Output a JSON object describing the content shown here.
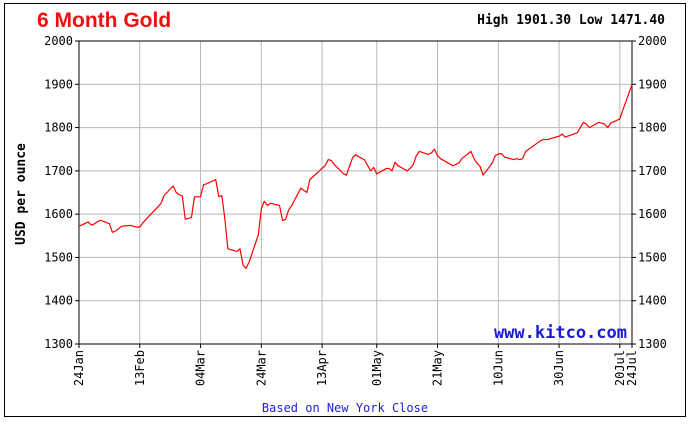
{
  "chart_data": {
    "type": "line",
    "title": "6 Month Gold",
    "high_low": "High 1901.30 Low 1471.40",
    "ylabel": "USD per ounce",
    "ylim": [
      1300,
      2000
    ],
    "yticks": [
      1300,
      1400,
      1500,
      1600,
      1700,
      1800,
      1900,
      2000
    ],
    "xlabels": [
      {
        "label": "24Jan",
        "day": 0
      },
      {
        "label": "13Feb",
        "day": 20
      },
      {
        "label": "04Mar",
        "day": 40
      },
      {
        "label": "24Mar",
        "day": 60
      },
      {
        "label": "13Apr",
        "day": 80
      },
      {
        "label": "01May",
        "day": 98
      },
      {
        "label": "21May",
        "day": 118
      },
      {
        "label": "10Jun",
        "day": 138
      },
      {
        "label": "30Jun",
        "day": 158
      },
      {
        "label": "20Jul",
        "day": 178
      },
      {
        "label": "24Jul",
        "day": 182
      }
    ],
    "watermark": "www.kitco.com",
    "note": "Based on New York Close",
    "grid": true,
    "line_color": "#ff0000",
    "series": [
      {
        "x": [
          "24Jan",
          "27Jan",
          "28Jan",
          "29Jan",
          "30Jan",
          "31Jan",
          "03Feb",
          "04Feb",
          "05Feb",
          "06Feb",
          "07Feb",
          "10Feb",
          "11Feb",
          "12Feb",
          "13Feb",
          "14Feb",
          "18Feb",
          "19Feb",
          "20Feb",
          "21Feb",
          "24Feb",
          "25Feb",
          "26Feb",
          "27Feb",
          "28Feb",
          "02Mar",
          "03Mar",
          "04Mar",
          "05Mar",
          "06Mar",
          "09Mar",
          "10Mar",
          "11Mar",
          "12Mar",
          "13Mar",
          "16Mar",
          "17Mar",
          "18Mar",
          "19Mar",
          "20Mar",
          "23Mar",
          "24Mar",
          "25Mar",
          "26Mar",
          "27Mar",
          "30Mar",
          "31Mar",
          "01Apr",
          "02Apr",
          "03Apr",
          "06Apr",
          "07Apr",
          "08Apr",
          "09Apr",
          "14Apr",
          "15Apr",
          "16Apr",
          "17Apr",
          "20Apr",
          "21Apr",
          "22Apr",
          "23Apr",
          "24Apr",
          "27Apr",
          "28Apr",
          "29Apr",
          "30Apr",
          "01May",
          "04May",
          "05May",
          "06May",
          "07May",
          "08May",
          "11May",
          "12May",
          "13May",
          "14May",
          "15May",
          "18May",
          "19May",
          "20May",
          "21May",
          "22May",
          "26May",
          "27May",
          "28May",
          "29May",
          "01Jun",
          "02Jun",
          "03Jun",
          "04Jun",
          "05Jun",
          "08Jun",
          "09Jun",
          "10Jun",
          "11Jun",
          "12Jun",
          "15Jun",
          "16Jun",
          "17Jun",
          "18Jun",
          "19Jun",
          "22Jun",
          "23Jun",
          "24Jun",
          "25Jun",
          "26Jun",
          "29Jun",
          "30Jun",
          "01Jul",
          "02Jul",
          "06Jul",
          "07Jul",
          "08Jul",
          "09Jul",
          "10Jul",
          "13Jul",
          "14Jul",
          "15Jul",
          "16Jul",
          "17Jul",
          "20Jul",
          "21Jul",
          "22Jul",
          "23Jul",
          "24Jul"
        ],
        "days": [
          0,
          3,
          4,
          5,
          6,
          7,
          10,
          11,
          12,
          13,
          14,
          17,
          18,
          19,
          20,
          21,
          25,
          26,
          27,
          28,
          31,
          32,
          33,
          34,
          35,
          37,
          38,
          40,
          41,
          42,
          45,
          46,
          47,
          48,
          49,
          52,
          53,
          54,
          55,
          56,
          59,
          60,
          61,
          62,
          63,
          66,
          67,
          68,
          69,
          70,
          73,
          74,
          75,
          76,
          81,
          82,
          83,
          84,
          87,
          88,
          89,
          90,
          91,
          94,
          95,
          96,
          97,
          98,
          101,
          102,
          103,
          104,
          105,
          108,
          109,
          110,
          111,
          112,
          115,
          116,
          117,
          118,
          119,
          123,
          124,
          125,
          126,
          129,
          130,
          131,
          132,
          133,
          136,
          137,
          138,
          139,
          140,
          143,
          144,
          145,
          146,
          147,
          150,
          151,
          152,
          153,
          154,
          157,
          158,
          159,
          160,
          164,
          165,
          166,
          167,
          168,
          171,
          172,
          173,
          174,
          175,
          178,
          179,
          180,
          181,
          182
        ],
        "values": [
          1572,
          1582,
          1575,
          1577,
          1582,
          1586,
          1578,
          1558,
          1561,
          1566,
          1572,
          1574,
          1572,
          1570,
          1570,
          1580,
          1610,
          1617,
          1625,
          1643,
          1665,
          1650,
          1645,
          1642,
          1588,
          1592,
          1640,
          1640,
          1668,
          1670,
          1680,
          1640,
          1643,
          1590,
          1520,
          1514,
          1520,
          1482,
          1475,
          1490,
          1552,
          1612,
          1630,
          1620,
          1625,
          1620,
          1585,
          1588,
          1610,
          1620,
          1660,
          1655,
          1650,
          1680,
          1712,
          1726,
          1724,
          1715,
          1694,
          1690,
          1710,
          1730,
          1737,
          1725,
          1712,
          1700,
          1708,
          1693,
          1705,
          1706,
          1700,
          1720,
          1712,
          1700,
          1706,
          1714,
          1735,
          1745,
          1738,
          1742,
          1750,
          1735,
          1728,
          1712,
          1715,
          1718,
          1728,
          1745,
          1728,
          1718,
          1710,
          1690,
          1718,
          1735,
          1739,
          1740,
          1732,
          1726,
          1728,
          1726,
          1728,
          1745,
          1760,
          1765,
          1770,
          1773,
          1772,
          1778,
          1780,
          1785,
          1778,
          1788,
          1800,
          1812,
          1808,
          1800,
          1812,
          1810,
          1808,
          1800,
          1810,
          1820,
          1841,
          1860,
          1880,
          1900
        ]
      }
    ]
  }
}
